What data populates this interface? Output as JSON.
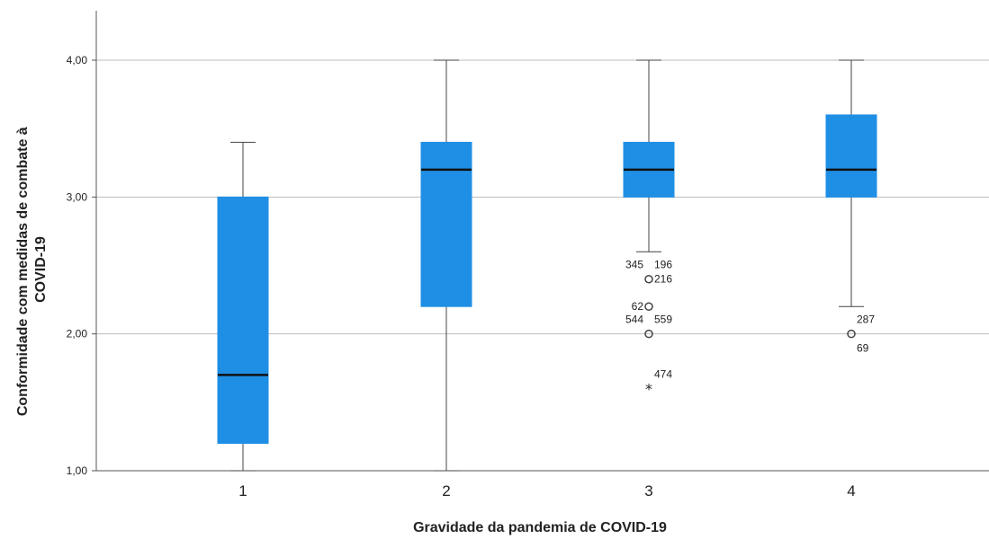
{
  "chart_data": {
    "type": "box",
    "xlabel": "Gravidade da  pandemia de COVID-19",
    "ylabel_lines": [
      "Conformidade com medidas de combate à",
      "COVID-19"
    ],
    "categories": [
      "1",
      "2",
      "3",
      "4"
    ],
    "ylim": [
      1.0,
      4.35
    ],
    "yticks": [
      {
        "value": 1.0,
        "label": "1,00"
      },
      {
        "value": 2.0,
        "label": "2,00"
      },
      {
        "value": 3.0,
        "label": "3,00"
      },
      {
        "value": 4.0,
        "label": "4,00"
      }
    ],
    "grid": true,
    "box_color": "#1f8fe5",
    "boxes": [
      {
        "category": "1",
        "whisker_low": 1.0,
        "q1": 1.2,
        "median": 1.7,
        "q3": 3.0,
        "whisker_high": 3.4
      },
      {
        "category": "2",
        "whisker_low": 1.0,
        "q1": 2.2,
        "median": 3.2,
        "q3": 3.4,
        "whisker_high": 4.0
      },
      {
        "category": "3",
        "whisker_low": 2.6,
        "q1": 3.0,
        "median": 3.2,
        "q3": 3.4,
        "whisker_high": 4.0
      },
      {
        "category": "4",
        "whisker_low": 2.2,
        "q1": 3.0,
        "median": 3.2,
        "q3": 3.6,
        "whisker_high": 4.0
      }
    ],
    "outliers": [
      {
        "category": "3",
        "value": 2.4,
        "marker": "circle",
        "labels": [
          {
            "text": "345",
            "anchor": "left",
            "dy": -1
          },
          {
            "text": "196",
            "anchor": "right",
            "dy": -1
          },
          {
            "text": "216",
            "anchor": "right",
            "dy": 0
          }
        ]
      },
      {
        "category": "3",
        "value": 2.2,
        "marker": "circle",
        "labels": [
          {
            "text": "62",
            "anchor": "left",
            "dy": 0
          }
        ]
      },
      {
        "category": "3",
        "value": 2.0,
        "marker": "circle",
        "labels": [
          {
            "text": "544",
            "anchor": "left",
            "dy": -1
          },
          {
            "text": "559",
            "anchor": "right",
            "dy": -1
          }
        ]
      },
      {
        "category": "3",
        "value": 1.6,
        "marker": "star",
        "labels": [
          {
            "text": "474",
            "anchor": "right",
            "dy": -1
          }
        ]
      },
      {
        "category": "4",
        "value": 2.0,
        "marker": "circle",
        "labels": [
          {
            "text": "287",
            "anchor": "right",
            "dy": -1
          },
          {
            "text": "69",
            "anchor": "right",
            "dy": 1
          }
        ]
      }
    ]
  }
}
